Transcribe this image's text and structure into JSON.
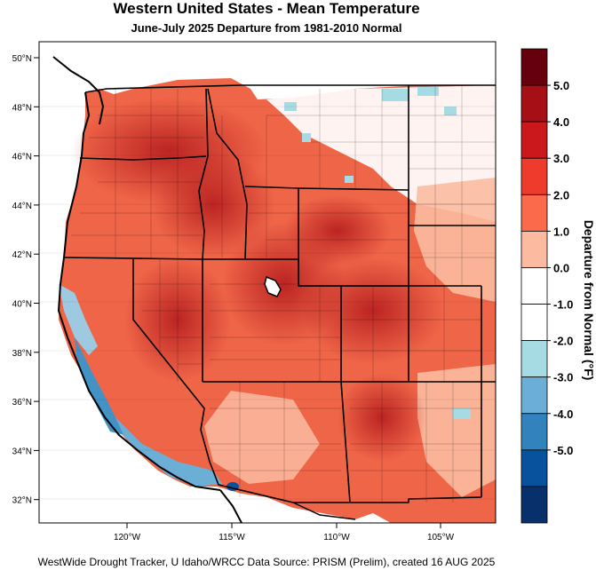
{
  "title": "Western United States - Mean Temperature",
  "subtitle": "June-July 2025  Departure from 1981-2010 Normal",
  "footer": "WestWide Drought Tracker, U Idaho/WRCC Data Source: PRISM (Prelim), created 16 AUG 2025",
  "lat_labels": [
    "50°N",
    "48°N",
    "46°N",
    "44°N",
    "42°N",
    "40°N",
    "38°N",
    "36°N",
    "34°N",
    "32°N"
  ],
  "lon_labels": [
    "120°W",
    "115°W",
    "110°W",
    "105°W"
  ],
  "colorbar": {
    "title": "Departure from Normal (°F)",
    "tick_labels": [
      "5.0",
      "4.0",
      "3.0",
      "2.0",
      "1.0",
      "0.0",
      "-1.0",
      "-2.0",
      "-3.0",
      "-4.0",
      "-5.0"
    ],
    "colors": [
      "#67000d",
      "#a50f15",
      "#cb181d",
      "#ef3b2c",
      "#fb6a4a",
      "#fcbba1",
      "#ffffff",
      "#ffffff",
      "#a6dbe3",
      "#6baed6",
      "#3182bd",
      "#08519c",
      "#08306b"
    ]
  }
}
